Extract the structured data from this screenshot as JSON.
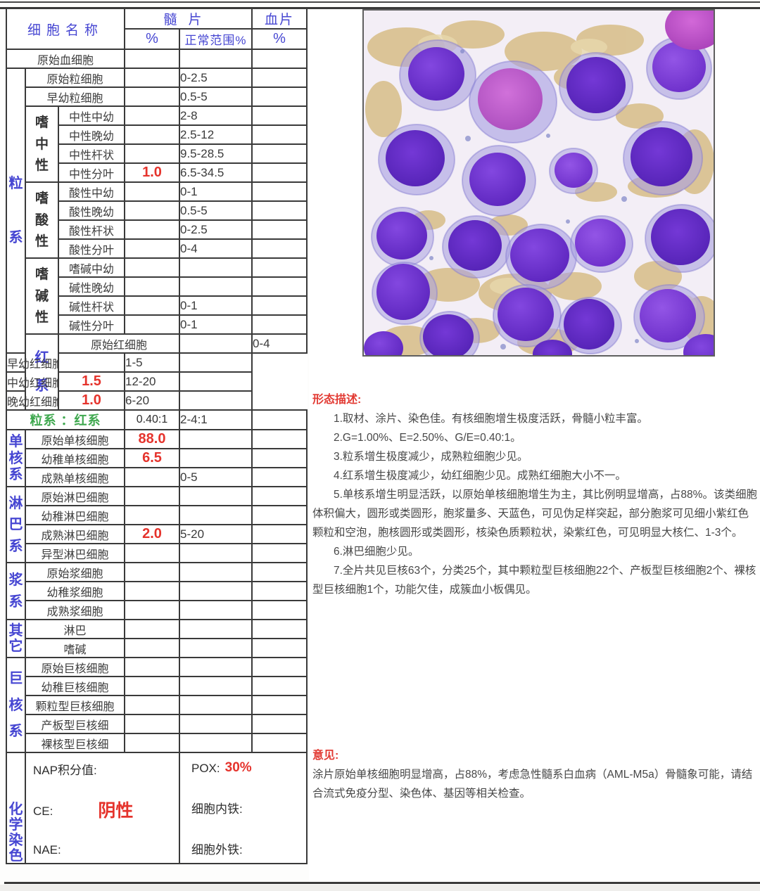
{
  "colors": {
    "header_blue": "#4646d2",
    "group_label_blue": "#4646d2",
    "value_red": "#e5332c",
    "ratio_green": "#3fa84f",
    "heading_red": "#e23a33",
    "table_border": "#3a3a3a",
    "smear_purple": "#6a2fd0",
    "smear_tan": "#d9c18f"
  },
  "table": {
    "header": {
      "cell_name": "细胞名称",
      "marrow": "髓片",
      "blood": "血片",
      "pct": "%",
      "normal_range": "正常范围%",
      "blood_pct": "%"
    },
    "rows": [
      {
        "name": "原始血细胞",
        "name_span": 3
      },
      {
        "g1": {
          "label": "粒系",
          "span": 15
        },
        "name": "原始粒细胞",
        "name_span": 2,
        "range": "0-2.5"
      },
      {
        "name": "早幼粒细胞",
        "name_span": 2,
        "range": "0.5-5"
      },
      {
        "g2": {
          "label": "嗜中性",
          "span": 4
        },
        "name": "中性中幼",
        "range": "2-8"
      },
      {
        "name": "中性晚幼",
        "range": "2.5-12"
      },
      {
        "name": "中性杆状",
        "range": "9.5-28.5"
      },
      {
        "name": "中性分叶",
        "pct": "1.0",
        "pct_red": true,
        "range": "6.5-34.5"
      },
      {
        "g2": {
          "label": "嗜酸性",
          "span": 4
        },
        "name": "酸性中幼",
        "range": "0-1"
      },
      {
        "name": "酸性晚幼",
        "range": "0.5-5"
      },
      {
        "name": "酸性杆状",
        "range": "0-2.5"
      },
      {
        "name": "酸性分叶",
        "range": "0-4"
      },
      {
        "g2": {
          "label": "嗜碱性",
          "span": 4
        },
        "name": "嗜碱中幼"
      },
      {
        "name": "碱性晚幼"
      },
      {
        "name": "碱性杆状",
        "range": "0-1"
      },
      {
        "name": "碱性分叶",
        "range": "0-1"
      },
      {
        "g1": {
          "label": "红系",
          "span": 4
        },
        "name": "原始红细胞",
        "name_span": 2,
        "range": "0-4"
      },
      {
        "name": "早幼红细胞",
        "name_span": 2,
        "range": "1-5"
      },
      {
        "name": "中幼红细胞",
        "name_span": 2,
        "pct": "1.5",
        "pct_red": true,
        "range": "12-20"
      },
      {
        "name": "晚幼红细胞",
        "name_span": 2,
        "pct": "1.0",
        "pct_red": true,
        "range": "6-20"
      },
      {
        "name": "粒系 ：红系",
        "name_span": 3,
        "green": true,
        "pct": "0.40:1",
        "range": "2-4:1"
      },
      {
        "g1": {
          "label": "单核系",
          "span": 3
        },
        "name": "原始单核细胞",
        "name_span": 2,
        "pct": "88.0",
        "pct_red": true
      },
      {
        "name": "幼稚单核细胞",
        "name_span": 2,
        "pct": "6.5",
        "pct_red": true
      },
      {
        "name": "成熟单核细胞",
        "name_span": 2,
        "range": "0-5"
      },
      {
        "g1": {
          "label": "淋巴系",
          "span": 4
        },
        "name": "原始淋巴细胞",
        "name_span": 2
      },
      {
        "name": "幼稚淋巴细胞",
        "name_span": 2
      },
      {
        "name": "成熟淋巴细胞",
        "name_span": 2,
        "pct": "2.0",
        "pct_red": true,
        "range": "5-20"
      },
      {
        "name": "异型淋巴细胞",
        "name_span": 2
      },
      {
        "g1": {
          "label": "浆系",
          "span": 3
        },
        "name": "原始浆细胞",
        "name_span": 2
      },
      {
        "name": "幼稚浆细胞",
        "name_span": 2
      },
      {
        "name": "成熟浆细胞",
        "name_span": 2
      },
      {
        "g1": {
          "label": "其它",
          "span": 2
        },
        "name": "淋巴",
        "name_span": 2
      },
      {
        "name": "嗜碱",
        "name_span": 2
      },
      {
        "g1": {
          "label": "巨核系",
          "span": 5
        },
        "name": "原始巨核细胞",
        "name_span": 2
      },
      {
        "name": "幼稚巨核细胞",
        "name_span": 2
      },
      {
        "name": "颗粒型巨核细胞",
        "name_span": 2
      },
      {
        "name": "产板型巨核细",
        "name_span": 2
      },
      {
        "name": "裸核型巨核细",
        "name_span": 2
      }
    ]
  },
  "chemistry": {
    "group_label": "化学染色",
    "nap_label": "NAP积分值:",
    "ce_label": "CE:",
    "ce_value": "阴性",
    "nae_label": "NAE:",
    "pox_label": "POX:",
    "pox_value": "30%",
    "iron_in_label": "细胞内铁:",
    "iron_out_label": "细胞外铁:"
  },
  "morphology": {
    "heading": "形态描述:",
    "lines": [
      "1.取材、涂片、染色佳。有核细胞增生极度活跃，骨髓小粒丰富。",
      "2.G=1.00%、E=2.50%、G/E=0.40:1。",
      "3.粒系增生极度减少，成熟粒细胞少见。",
      "4.红系增生极度减少，幼红细胞少见。成熟红细胞大小不一。",
      "5.单核系增生明显活跃，以原始单核细胞增生为主，其比例明显增高，占88%。该类细胞体积偏大，圆形或类圆形，胞浆量多、天蓝色，可见伪足样突起，部分胞浆可见细小紫红色颗粒和空泡，胞核圆形或类圆形，核染色质颗粒状，染紫红色，可见明显大核仁、1-3个。",
      "6.淋巴细胞少见。",
      "7.全片共见巨核63个，分类25个，其中颗粒型巨核细胞22个、产板型巨核细胞2个、裸核型巨核细胞1个，功能欠佳，成簇血小板偶见。"
    ]
  },
  "opinion": {
    "heading": "意见:",
    "text": "涂片原始单核细胞明显增高，占88%，考虑急性髓系白血病（AML-M5a）骨髓象可能，请结合流式免疫分型、染色体、基因等相关检查。"
  }
}
